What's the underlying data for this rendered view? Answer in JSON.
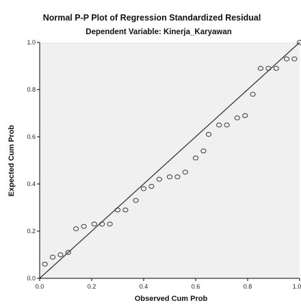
{
  "chart_data": {
    "type": "scatter",
    "title": "Normal P-P Plot of Regression Standardized Residual",
    "subtitle": "Dependent Variable: Kinerja_Karyawan",
    "xlabel": "Observed Cum Prob",
    "ylabel": "Expected Cum Prob",
    "xlim": [
      0,
      1
    ],
    "ylim": [
      0,
      1
    ],
    "xticks": [
      "0.0",
      "0.2",
      "0.4",
      "0.6",
      "0.8",
      "1.0"
    ],
    "yticks": [
      "0.0",
      "0.2",
      "0.4",
      "0.6",
      "0.8",
      "1.0"
    ],
    "grid": false,
    "reference_line": {
      "from": [
        0,
        0
      ],
      "to": [
        1,
        1
      ]
    },
    "colors": {
      "plot_bg": "#f0f0f0",
      "marker_edge": "#333333",
      "line": "#333333",
      "frame": "#000000"
    },
    "series": [
      {
        "marker": "open-circle",
        "x": [
          0.02,
          0.05,
          0.08,
          0.11,
          0.14,
          0.17,
          0.21,
          0.24,
          0.27,
          0.3,
          0.33,
          0.37,
          0.4,
          0.43,
          0.46,
          0.5,
          0.53,
          0.56,
          0.6,
          0.63,
          0.65,
          0.69,
          0.72,
          0.76,
          0.79,
          0.82,
          0.85,
          0.88,
          0.91,
          0.95,
          0.98,
          1.0
        ],
        "y": [
          0.06,
          0.09,
          0.1,
          0.11,
          0.21,
          0.22,
          0.23,
          0.23,
          0.23,
          0.29,
          0.29,
          0.33,
          0.38,
          0.39,
          0.42,
          0.43,
          0.43,
          0.45,
          0.51,
          0.54,
          0.61,
          0.65,
          0.65,
          0.68,
          0.69,
          0.78,
          0.89,
          0.89,
          0.89,
          0.93,
          0.93,
          1.0
        ]
      }
    ]
  }
}
